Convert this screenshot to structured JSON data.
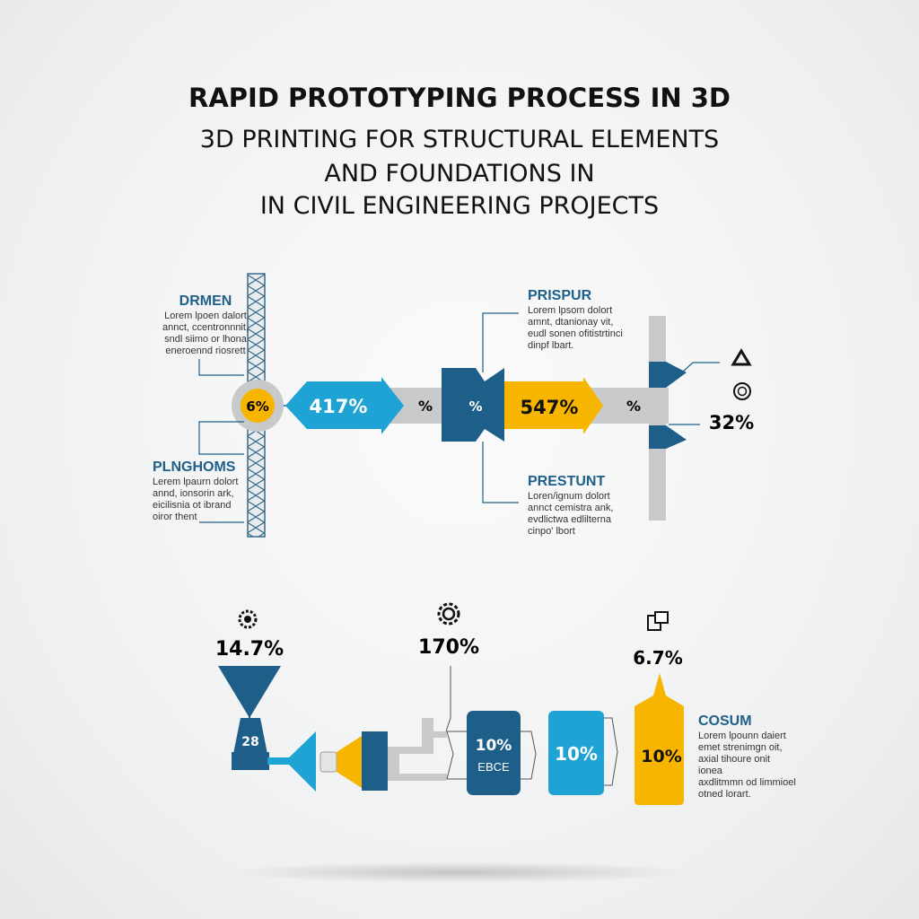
{
  "title": {
    "line1": "RAPID PROTOTYPING PROCESS IN 3D",
    "line2": "3D PRINTING FOR STRUCTURAL ELEMENTS",
    "line3": "AND FOUNDATIONS IN",
    "line4": "IN CIVIL ENGINEERING PROJECTS"
  },
  "colors": {
    "dark_blue": "#1e5f8a",
    "light_blue": "#1ea3d4",
    "yellow": "#f7b500",
    "gray": "#c8c9ca"
  },
  "top_flow": {
    "circle_value": "6%",
    "light_blue_arrow": "417%",
    "gray_1": "%",
    "dark_blue_block": "%",
    "yellow_arrow": "547%",
    "gray_2": "%",
    "right_value": "32%",
    "right_icons": [
      "network-icon",
      "target-coin-icon"
    ]
  },
  "labels": {
    "drmen": {
      "heading": "DRMEN",
      "lines": [
        "Lorem lpoen dalort",
        "annct, ccentronnnit,",
        "sndl siimo or lhona",
        "eneroennd riosrett"
      ]
    },
    "plnghoms": {
      "heading": "PLNGHOMS",
      "lines": [
        "Lerem lpaurn dolort",
        "annd, ionsorin ark,",
        "eicilisnia ot ibrand",
        "oiror thent"
      ]
    },
    "prispur": {
      "heading": "PRISPUR",
      "lines": [
        "Lorem lpsom dolort",
        "amnt, dtanionay vit,",
        "eudl sonen ofitistrtinci",
        "dinpf lbart."
      ]
    },
    "prestunt": {
      "heading": "PRESTUNT",
      "lines": [
        "Loren/ignum dolort",
        "annct cemistra ank,",
        "evdlictwa edlilterna",
        "cinpo' lbort"
      ]
    },
    "cosum": {
      "heading": "COSUM",
      "lines": [
        "Lorem lpounn daiert",
        "emet strenimgn oit,",
        "axial tihoure onit ionea",
        "axdlitmmn od limmioel",
        "otned lorart."
      ]
    }
  },
  "bottom_flow": {
    "hopper_value": "14.7%",
    "hopper_icon": "gear-icon",
    "nozzle_base_value": "28",
    "mid_value": "170%",
    "mid_icon": "gear-icon",
    "dark_box_value": "10%",
    "dark_box_label": "EBCE",
    "light_box_value": "10%",
    "yellow_value": "10%",
    "yellow_top_value": "6.7%",
    "yellow_icon": "document-icon"
  }
}
